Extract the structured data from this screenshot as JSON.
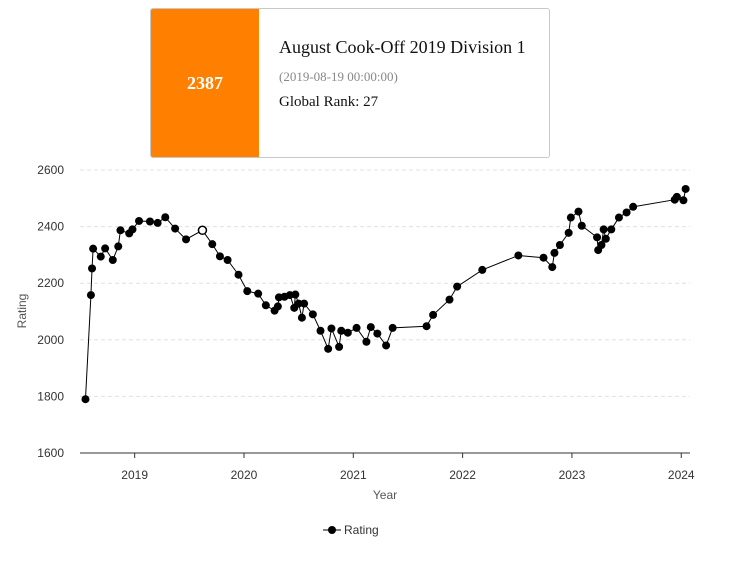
{
  "tooltip": {
    "rating": "2387",
    "contest_name": "August Cook-Off 2019 Division 1",
    "date": "(2019-08-19 00:00:00)",
    "global_rank": "Global Rank: 27"
  },
  "chart_data": {
    "type": "line",
    "xlabel": "Year",
    "ylabel": "Rating",
    "ylim": [
      1600,
      2600
    ],
    "yticks": [
      1600,
      1800,
      2000,
      2200,
      2400,
      2600
    ],
    "xticks": [
      {
        "value": 2019,
        "label": "2019"
      },
      {
        "value": 2020,
        "label": "2020"
      },
      {
        "value": 2021,
        "label": "2021"
      },
      {
        "value": 2022,
        "label": "2022"
      },
      {
        "value": 2023,
        "label": "2023"
      },
      {
        "value": 2024,
        "label": "2024"
      }
    ],
    "xlim": [
      2018.5,
      2024.08
    ],
    "grid": true,
    "legend_position": "bottom",
    "highlighted_point_index": 16,
    "series": [
      {
        "name": "Rating",
        "color": "#000000",
        "points": [
          [
            2018.55,
            1790
          ],
          [
            2018.6,
            2158
          ],
          [
            2018.61,
            2252
          ],
          [
            2018.62,
            2322
          ],
          [
            2018.69,
            2294
          ],
          [
            2018.73,
            2323
          ],
          [
            2018.8,
            2282
          ],
          [
            2018.85,
            2330
          ],
          [
            2018.87,
            2387
          ],
          [
            2018.95,
            2376
          ],
          [
            2018.98,
            2390
          ],
          [
            2019.04,
            2420
          ],
          [
            2019.14,
            2418
          ],
          [
            2019.21,
            2413
          ],
          [
            2019.28,
            2433
          ],
          [
            2019.37,
            2393
          ],
          [
            2019.62,
            2387
          ],
          [
            2019.47,
            2355
          ],
          [
            2019.71,
            2338
          ],
          [
            2019.78,
            2295
          ],
          [
            2019.85,
            2282
          ],
          [
            2019.95,
            2230
          ],
          [
            2020.03,
            2172
          ],
          [
            2020.13,
            2163
          ],
          [
            2020.2,
            2122
          ],
          [
            2020.28,
            2103
          ],
          [
            2020.31,
            2118
          ],
          [
            2020.32,
            2150
          ],
          [
            2020.37,
            2152
          ],
          [
            2020.42,
            2158
          ],
          [
            2020.46,
            2113
          ],
          [
            2020.47,
            2160
          ],
          [
            2020.5,
            2128
          ],
          [
            2020.53,
            2078
          ],
          [
            2020.55,
            2128
          ],
          [
            2020.63,
            2090
          ],
          [
            2020.7,
            2032
          ],
          [
            2020.77,
            1968
          ],
          [
            2020.8,
            2040
          ],
          [
            2020.87,
            1975
          ],
          [
            2020.89,
            2032
          ],
          [
            2020.95,
            2025
          ],
          [
            2021.03,
            2042
          ],
          [
            2021.12,
            1993
          ],
          [
            2021.16,
            2045
          ],
          [
            2021.22,
            2022
          ],
          [
            2021.3,
            1980
          ],
          [
            2021.36,
            2042
          ],
          [
            2021.67,
            2048
          ],
          [
            2021.73,
            2088
          ],
          [
            2021.88,
            2142
          ],
          [
            2021.95,
            2188
          ],
          [
            2022.18,
            2247
          ],
          [
            2022.51,
            2298
          ],
          [
            2022.74,
            2290
          ],
          [
            2022.82,
            2257
          ],
          [
            2022.84,
            2307
          ],
          [
            2022.89,
            2335
          ],
          [
            2022.97,
            2378
          ],
          [
            2022.99,
            2432
          ],
          [
            2023.06,
            2453
          ],
          [
            2023.09,
            2403
          ],
          [
            2023.23,
            2362
          ],
          [
            2023.24,
            2317
          ],
          [
            2023.27,
            2335
          ],
          [
            2023.29,
            2390
          ],
          [
            2023.31,
            2357
          ],
          [
            2023.36,
            2390
          ],
          [
            2023.43,
            2432
          ],
          [
            2023.5,
            2450
          ],
          [
            2023.56,
            2470
          ],
          [
            2023.94,
            2495
          ],
          [
            2023.96,
            2505
          ],
          [
            2024.02,
            2493
          ],
          [
            2024.04,
            2533
          ]
        ]
      }
    ]
  }
}
